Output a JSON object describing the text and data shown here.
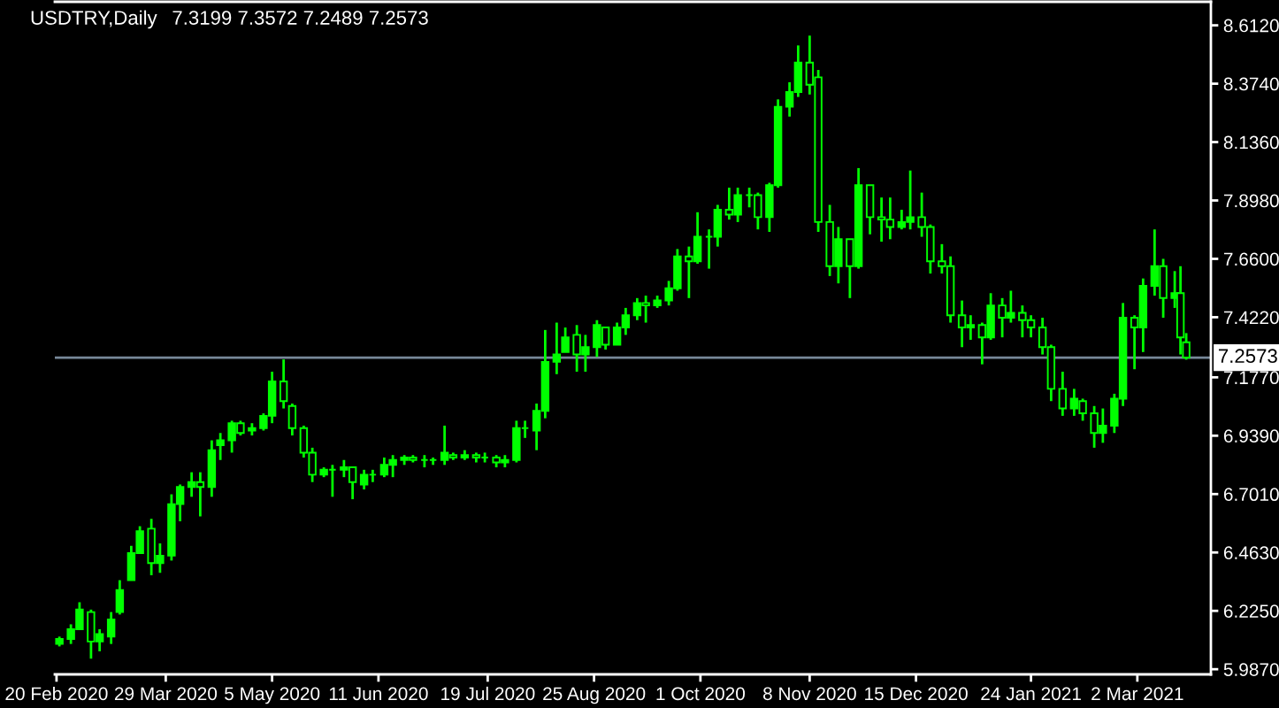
{
  "chart_data": {
    "type": "candlestick",
    "title": "USDTRY,Daily",
    "subtitle": "7.3199 7.3572 7.2489 7.2573",
    "color": "#00ff00",
    "x": [
      "2020-02-21",
      "2020-02-25",
      "2020-02-28",
      "2020-03-03",
      "2020-03-06",
      "2020-03-10",
      "2020-03-13",
      "2020-03-17",
      "2020-03-20",
      "2020-03-24",
      "2020-03-27",
      "2020-03-31",
      "2020-04-03",
      "2020-04-07",
      "2020-04-10",
      "2020-04-14",
      "2020-04-17",
      "2020-04-21",
      "2020-04-24",
      "2020-04-28",
      "2020-05-02",
      "2020-05-05",
      "2020-05-09",
      "2020-05-12",
      "2020-05-16",
      "2020-05-19",
      "2020-05-23",
      "2020-05-26",
      "2020-05-30",
      "2020-06-02",
      "2020-06-06",
      "2020-06-09",
      "2020-06-13",
      "2020-06-16",
      "2020-06-20",
      "2020-06-23",
      "2020-06-27",
      "2020-06-30",
      "2020-07-04",
      "2020-07-07",
      "2020-07-11",
      "2020-07-15",
      "2020-07-18",
      "2020-07-22",
      "2020-07-25",
      "2020-07-29",
      "2020-08-01",
      "2020-08-05",
      "2020-08-08",
      "2020-08-12",
      "2020-08-15",
      "2020-08-19",
      "2020-08-22",
      "2020-08-26",
      "2020-08-29",
      "2020-09-02",
      "2020-09-05",
      "2020-09-09",
      "2020-09-12",
      "2020-09-16",
      "2020-09-20",
      "2020-09-23",
      "2020-09-27",
      "2020-09-30",
      "2020-10-04",
      "2020-10-07",
      "2020-10-11",
      "2020-10-14",
      "2020-10-18",
      "2020-10-21",
      "2020-10-25",
      "2020-10-28",
      "2020-11-01",
      "2020-11-04",
      "2020-11-08",
      "2020-11-11",
      "2020-11-15",
      "2020-11-18",
      "2020-11-22",
      "2020-11-25",
      "2020-11-29",
      "2020-12-03",
      "2020-12-06",
      "2020-12-10",
      "2020-12-13",
      "2020-12-17",
      "2020-12-20",
      "2020-12-24",
      "2020-12-27",
      "2020-12-31",
      "2021-01-03",
      "2021-01-07",
      "2021-01-10",
      "2021-01-14",
      "2021-01-17",
      "2021-01-21",
      "2021-01-24",
      "2021-01-28",
      "2021-01-31",
      "2021-02-04",
      "2021-02-08",
      "2021-02-11",
      "2021-02-15",
      "2021-02-18",
      "2021-02-22",
      "2021-02-25",
      "2021-03-01",
      "2021-03-04",
      "2021-03-08",
      "2021-03-11",
      "2021-03-15",
      "2021-03-17",
      "2021-03-19"
    ],
    "ohlc": [
      [
        6.09,
        6.12,
        6.08,
        6.11
      ],
      [
        6.11,
        6.17,
        6.09,
        6.15
      ],
      [
        6.15,
        6.26,
        6.15,
        6.23
      ],
      [
        6.22,
        6.23,
        6.03,
        6.1
      ],
      [
        6.1,
        6.15,
        6.06,
        6.13
      ],
      [
        6.12,
        6.22,
        6.09,
        6.19
      ],
      [
        6.22,
        6.35,
        6.21,
        6.31
      ],
      [
        6.35,
        6.49,
        6.35,
        6.46
      ],
      [
        6.46,
        6.57,
        6.46,
        6.55
      ],
      [
        6.56,
        6.6,
        6.37,
        6.42
      ],
      [
        6.42,
        6.5,
        6.38,
        6.45
      ],
      [
        6.45,
        6.7,
        6.43,
        6.66
      ],
      [
        6.66,
        6.74,
        6.59,
        6.73
      ],
      [
        6.73,
        6.79,
        6.69,
        6.75
      ],
      [
        6.75,
        6.79,
        6.61,
        6.73
      ],
      [
        6.73,
        6.92,
        6.69,
        6.88
      ],
      [
        6.9,
        6.95,
        6.84,
        6.92
      ],
      [
        6.92,
        7.0,
        6.87,
        6.99
      ],
      [
        6.99,
        7.0,
        6.94,
        6.95
      ],
      [
        6.96,
        6.99,
        6.94,
        6.97
      ],
      [
        6.97,
        7.03,
        6.96,
        7.02
      ],
      [
        7.02,
        7.2,
        6.99,
        7.16
      ],
      [
        7.16,
        7.25,
        7.05,
        7.08
      ],
      [
        7.06,
        7.07,
        6.94,
        6.97
      ],
      [
        6.97,
        6.98,
        6.85,
        6.87
      ],
      [
        6.87,
        6.89,
        6.75,
        6.78
      ],
      [
        6.78,
        6.81,
        6.77,
        6.8
      ],
      [
        6.8,
        6.82,
        6.69,
        6.8
      ],
      [
        6.8,
        6.84,
        6.77,
        6.81
      ],
      [
        6.81,
        6.81,
        6.68,
        6.75
      ],
      [
        6.74,
        6.8,
        6.72,
        6.78
      ],
      [
        6.78,
        6.8,
        6.75,
        6.78
      ],
      [
        6.78,
        6.85,
        6.77,
        6.82
      ],
      [
        6.82,
        6.86,
        6.77,
        6.84
      ],
      [
        6.84,
        6.86,
        6.82,
        6.85
      ],
      [
        6.85,
        6.86,
        6.83,
        6.84
      ],
      [
        6.84,
        6.86,
        6.81,
        6.84
      ],
      [
        6.84,
        6.85,
        6.82,
        6.84
      ],
      [
        6.84,
        6.98,
        6.82,
        6.87
      ],
      [
        6.86,
        6.87,
        6.84,
        6.85
      ],
      [
        6.85,
        6.88,
        6.84,
        6.86
      ],
      [
        6.86,
        6.87,
        6.83,
        6.85
      ],
      [
        6.85,
        6.87,
        6.83,
        6.85
      ],
      [
        6.85,
        6.86,
        6.81,
        6.83
      ],
      [
        6.83,
        6.86,
        6.81,
        6.84
      ],
      [
        6.84,
        7.0,
        6.83,
        6.97
      ],
      [
        6.97,
        7.0,
        6.93,
        6.97
      ],
      [
        6.96,
        7.07,
        6.88,
        7.04
      ],
      [
        7.04,
        7.37,
        7.01,
        7.24
      ],
      [
        7.24,
        7.4,
        7.19,
        7.27
      ],
      [
        7.28,
        7.38,
        7.28,
        7.34
      ],
      [
        7.35,
        7.39,
        7.2,
        7.27
      ],
      [
        7.27,
        7.35,
        7.2,
        7.3
      ],
      [
        7.3,
        7.41,
        7.26,
        7.39
      ],
      [
        7.38,
        7.38,
        7.29,
        7.31
      ],
      [
        7.31,
        7.4,
        7.31,
        7.38
      ],
      [
        7.38,
        7.46,
        7.35,
        7.43
      ],
      [
        7.43,
        7.5,
        7.41,
        7.48
      ],
      [
        7.48,
        7.51,
        7.4,
        7.47
      ],
      [
        7.47,
        7.51,
        7.46,
        7.49
      ],
      [
        7.49,
        7.57,
        7.47,
        7.54
      ],
      [
        7.54,
        7.7,
        7.53,
        7.67
      ],
      [
        7.67,
        7.71,
        7.5,
        7.65
      ],
      [
        7.65,
        7.85,
        7.64,
        7.75
      ],
      [
        7.75,
        7.78,
        7.62,
        7.75
      ],
      [
        7.75,
        7.88,
        7.71,
        7.86
      ],
      [
        7.86,
        7.95,
        7.82,
        7.84
      ],
      [
        7.84,
        7.95,
        7.81,
        7.92
      ],
      [
        7.92,
        7.95,
        7.87,
        7.92
      ],
      [
        7.92,
        7.93,
        7.78,
        7.83
      ],
      [
        7.83,
        7.97,
        7.77,
        7.96
      ],
      [
        7.96,
        8.31,
        7.95,
        8.28
      ],
      [
        8.28,
        8.38,
        8.24,
        8.34
      ],
      [
        8.34,
        8.53,
        8.32,
        8.46
      ],
      [
        8.46,
        8.57,
        8.33,
        8.37
      ],
      [
        8.4,
        8.43,
        7.77,
        7.81
      ],
      [
        7.81,
        7.88,
        7.59,
        7.63
      ],
      [
        7.63,
        7.79,
        7.56,
        7.74
      ],
      [
        7.74,
        7.74,
        7.5,
        7.63
      ],
      [
        7.63,
        8.03,
        7.62,
        7.96
      ],
      [
        7.96,
        7.96,
        7.76,
        7.83
      ],
      [
        7.83,
        7.91,
        7.73,
        7.82
      ],
      [
        7.82,
        7.91,
        7.74,
        7.79
      ],
      [
        7.79,
        7.86,
        7.78,
        7.81
      ],
      [
        7.81,
        8.02,
        7.78,
        7.83
      ],
      [
        7.83,
        7.93,
        7.75,
        7.79
      ],
      [
        7.79,
        7.8,
        7.6,
        7.65
      ],
      [
        7.65,
        7.72,
        7.6,
        7.63
      ],
      [
        7.63,
        7.67,
        7.4,
        7.43
      ],
      [
        7.43,
        7.49,
        7.3,
        7.38
      ],
      [
        7.38,
        7.43,
        7.33,
        7.39
      ],
      [
        7.39,
        7.4,
        7.23,
        7.34
      ],
      [
        7.34,
        7.52,
        7.33,
        7.47
      ],
      [
        7.47,
        7.5,
        7.34,
        7.42
      ],
      [
        7.42,
        7.53,
        7.4,
        7.44
      ],
      [
        7.44,
        7.47,
        7.34,
        7.41
      ],
      [
        7.41,
        7.43,
        7.34,
        7.38
      ],
      [
        7.38,
        7.42,
        7.27,
        7.3
      ],
      [
        7.3,
        7.31,
        7.08,
        7.13
      ],
      [
        7.13,
        7.2,
        7.02,
        7.05
      ],
      [
        7.05,
        7.13,
        7.02,
        7.09
      ],
      [
        7.08,
        7.09,
        7.0,
        7.03
      ],
      [
        7.03,
        7.06,
        6.89,
        6.95
      ],
      [
        6.95,
        7.05,
        6.91,
        6.98
      ],
      [
        6.98,
        7.11,
        6.95,
        7.09
      ],
      [
        7.09,
        7.48,
        7.06,
        7.42
      ],
      [
        7.42,
        7.43,
        7.21,
        7.38
      ],
      [
        7.38,
        7.58,
        7.28,
        7.55
      ],
      [
        7.55,
        7.78,
        7.51,
        7.63
      ],
      [
        7.63,
        7.66,
        7.42,
        7.5
      ],
      [
        7.5,
        7.61,
        7.46,
        7.52
      ],
      [
        7.52,
        7.63,
        7.27,
        7.34
      ],
      [
        7.3199,
        7.3572,
        7.2489,
        7.2573
      ]
    ],
    "xlim": [
      "2020-02-19T10:00",
      "2021-03-27T14:00"
    ],
    "xticks": [
      {
        "value": "2020-02-20",
        "label": "20 Feb 2020"
      },
      {
        "value": "2020-03-29",
        "label": "29 Mar 2020"
      },
      {
        "value": "2020-05-05",
        "label": "5 May 2020"
      },
      {
        "value": "2020-06-11",
        "label": "11 Jun 2020"
      },
      {
        "value": "2020-07-19",
        "label": "19 Jul 2020"
      },
      {
        "value": "2020-08-25",
        "label": "25 Aug 2020"
      },
      {
        "value": "2020-10-01",
        "label": "1 Oct 2020"
      },
      {
        "value": "2020-11-08",
        "label": "8 Nov 2020"
      },
      {
        "value": "2020-12-15",
        "label": "15 Dec 2020"
      },
      {
        "value": "2021-01-24",
        "label": "24 Jan 2021"
      },
      {
        "value": "2021-03-02",
        "label": "2 Mar 2021"
      }
    ],
    "ylim": [
      5.966,
      8.708
    ],
    "yticks": [
      {
        "value": 8.612,
        "label": "8.6120"
      },
      {
        "value": 8.374,
        "label": "8.3740"
      },
      {
        "value": 8.136,
        "label": "8.1360"
      },
      {
        "value": 7.898,
        "label": "7.8980"
      },
      {
        "value": 7.66,
        "label": "7.6600"
      },
      {
        "value": 7.422,
        "label": "7.4220"
      },
      {
        "value": 7.177,
        "label": "7.1770"
      },
      {
        "value": 6.939,
        "label": "6.9390"
      },
      {
        "value": 6.701,
        "label": "6.7010"
      },
      {
        "value": 6.463,
        "label": "6.4630"
      },
      {
        "value": 6.225,
        "label": "6.2250"
      },
      {
        "value": 5.987,
        "label": "5.9870"
      }
    ],
    "ref_lines": [
      {
        "axis": "y",
        "value": 7.2573,
        "label": "7.2573",
        "color": "#778899"
      }
    ]
  }
}
